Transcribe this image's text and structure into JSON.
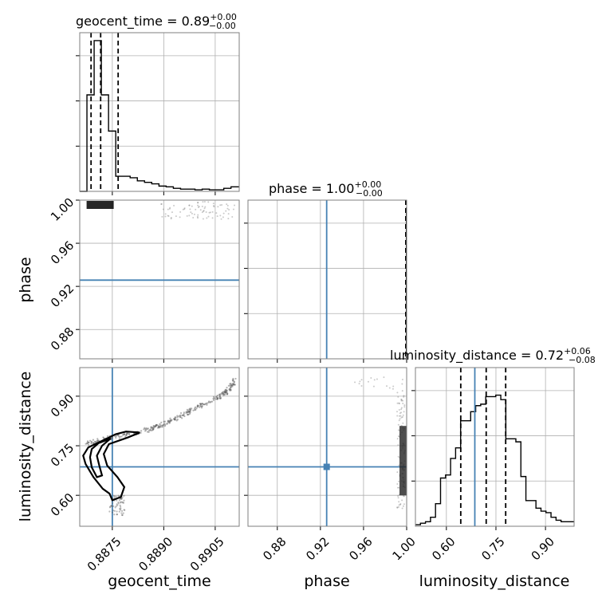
{
  "chart_data": {
    "type": "corner",
    "parameters": [
      "geocent_time",
      "phase",
      "luminosity_distance"
    ],
    "axis_labels": {
      "x": [
        "geocent_time",
        "phase",
        "luminosity_distance"
      ],
      "y": [
        "phase",
        "luminosity_distance"
      ]
    },
    "titles": [
      {
        "name": "geocent_time",
        "text": "geocent_time = 0.89",
        "upper": "+0.00",
        "lower": "−0.00"
      },
      {
        "name": "phase",
        "text": "phase = 1.00",
        "upper": "+0.00",
        "lower": "−0.00"
      },
      {
        "name": "luminosity_distance",
        "text": "luminosity_distance = 0.72",
        "upper": "+0.06",
        "lower": "−0.08"
      }
    ],
    "ranges": {
      "geocent_time": [
        0.88655,
        0.8912
      ],
      "phase": [
        0.8528,
        1.0
      ],
      "luminosity_distance": [
        0.5063,
        0.9866
      ]
    },
    "ticks": {
      "geocent_time": {
        "values": [
          0.8875,
          0.889,
          0.8905
        ],
        "labels": [
          "0.8875",
          "0.8890",
          "0.8905"
        ]
      },
      "phase": {
        "values": [
          0.88,
          0.92,
          0.96,
          1.0
        ],
        "labels": [
          "0.88",
          "0.92",
          "0.96",
          "1.00"
        ]
      },
      "luminosity_distance": {
        "values": [
          0.6,
          0.75,
          0.9
        ],
        "labels": [
          "0.60",
          "0.75",
          "0.90"
        ]
      }
    },
    "truth": {
      "geocent_time": 0.8875,
      "phase": 0.9258,
      "luminosity_distance": 0.6861
    },
    "histograms": {
      "geocent_time": {
        "bin_edges": [
          0.88655,
          0.88676,
          0.88697,
          0.88718,
          0.88739,
          0.8876,
          0.88781,
          0.88802,
          0.88823,
          0.88844,
          0.88865,
          0.88886,
          0.88907,
          0.88928,
          0.88949,
          0.8897,
          0.88991,
          0.89012,
          0.89033,
          0.89054,
          0.89075,
          0.89096,
          0.8912
        ],
        "counts": [
          0,
          0.64,
          1.0,
          0.64,
          0.4,
          0.1,
          0.1,
          0.09,
          0.07,
          0.06,
          0.05,
          0.035,
          0.03,
          0.02,
          0.015,
          0.015,
          0.01,
          0.015,
          0.01,
          0.01,
          0.02,
          0.03
        ],
        "quantiles": [
          0.88688,
          0.88716,
          0.88767
        ]
      },
      "phase": {
        "bin_edges": [
          0.9933,
          0.99975,
          1.0
        ],
        "counts": [
          0,
          1.0
        ],
        "quantiles": [
          0.9998,
          0.9999,
          1.0
        ]
      },
      "luminosity_distance": {
        "bin_edges": [
          0.5063,
          0.5215,
          0.5367,
          0.5519,
          0.5671,
          0.5823,
          0.5975,
          0.6127,
          0.6279,
          0.6431,
          0.6583,
          0.6735,
          0.6887,
          0.7039,
          0.7191,
          0.7343,
          0.7495,
          0.7647,
          0.7799,
          0.7951,
          0.8103,
          0.8255,
          0.8407,
          0.8559,
          0.8711,
          0.8863,
          0.9015,
          0.9167,
          0.9319,
          0.9471,
          0.9623,
          0.9866
        ],
        "counts": [
          0.01,
          0.02,
          0.03,
          0.06,
          0.15,
          0.32,
          0.34,
          0.45,
          0.52,
          0.7,
          0.7,
          0.76,
          0.8,
          0.81,
          0.86,
          0.86,
          0.87,
          0.84,
          0.58,
          0.58,
          0.56,
          0.33,
          0.17,
          0.17,
          0.12,
          0.1,
          0.09,
          0.06,
          0.04,
          0.03,
          0.03
        ],
        "quantiles": [
          0.6435,
          0.7205,
          0.7795
        ]
      }
    },
    "correlation_curve": {
      "description_units": "data units (geocent_time, luminosity_distance)",
      "points": [
        [
          0.88675,
          0.757
        ],
        [
          0.8873,
          0.77
        ],
        [
          0.8877,
          0.78
        ],
        [
          0.8882,
          0.79
        ],
        [
          0.8886,
          0.8
        ],
        [
          0.88885,
          0.81
        ],
        [
          0.8891,
          0.82
        ],
        [
          0.8895,
          0.84
        ],
        [
          0.88985,
          0.86
        ],
        [
          0.89025,
          0.88
        ],
        [
          0.89065,
          0.9
        ],
        [
          0.8909,
          0.92
        ],
        [
          0.8911,
          0.95
        ]
      ]
    },
    "contours": {
      "outer": [
        [
          0.88665,
          0.72
        ],
        [
          0.8868,
          0.745
        ],
        [
          0.8872,
          0.765
        ],
        [
          0.8876,
          0.785
        ],
        [
          0.8879,
          0.793
        ],
        [
          0.8883,
          0.79
        ],
        [
          0.88795,
          0.775
        ],
        [
          0.8874,
          0.755
        ],
        [
          0.88725,
          0.725
        ],
        [
          0.88735,
          0.69
        ],
        [
          0.88765,
          0.655
        ],
        [
          0.88785,
          0.625
        ],
        [
          0.88775,
          0.595
        ],
        [
          0.8875,
          0.585
        ],
        [
          0.88742,
          0.605
        ],
        [
          0.88722,
          0.62
        ],
        [
          0.88695,
          0.655
        ],
        [
          0.88672,
          0.695
        ]
      ],
      "inner": [
        [
          0.88685,
          0.715
        ],
        [
          0.8869,
          0.74
        ],
        [
          0.8871,
          0.758
        ],
        [
          0.88745,
          0.772
        ],
        [
          0.8872,
          0.75
        ],
        [
          0.88705,
          0.72
        ],
        [
          0.88712,
          0.69
        ],
        [
          0.8872,
          0.66
        ],
        [
          0.88705,
          0.655
        ],
        [
          0.8869,
          0.685
        ]
      ]
    }
  }
}
